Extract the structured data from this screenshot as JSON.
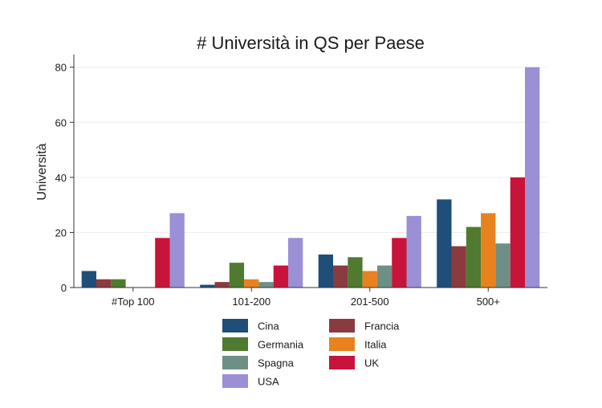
{
  "chart_data": {
    "type": "bar",
    "title": "# Università in QS per Paese",
    "xlabel": "",
    "ylabel": "Università",
    "categories": [
      "#Top 100",
      "101-200",
      "201-500",
      "500+"
    ],
    "yticks": [
      0,
      20,
      40,
      60,
      80
    ],
    "ylim": [
      0,
      84
    ],
    "grid": true,
    "legend_position": "bottom",
    "series": [
      {
        "name": "Cina",
        "color": "#1f4e79",
        "values": [
          6,
          1,
          12,
          32
        ]
      },
      {
        "name": "Francia",
        "color": "#8b3a3f",
        "values": [
          3,
          2,
          8,
          15
        ]
      },
      {
        "name": "Germania",
        "color": "#4f7a2f",
        "values": [
          3,
          9,
          11,
          22
        ]
      },
      {
        "name": "Italia",
        "color": "#e8821e",
        "values": [
          0,
          3,
          6,
          27
        ]
      },
      {
        "name": "Spagna",
        "color": "#6e8f86",
        "values": [
          0,
          2,
          8,
          16
        ]
      },
      {
        "name": "UK",
        "color": "#c8143a",
        "values": [
          18,
          8,
          18,
          40
        ]
      },
      {
        "name": "USA",
        "color": "#9b8fd6",
        "values": [
          27,
          18,
          26,
          80
        ]
      }
    ]
  }
}
